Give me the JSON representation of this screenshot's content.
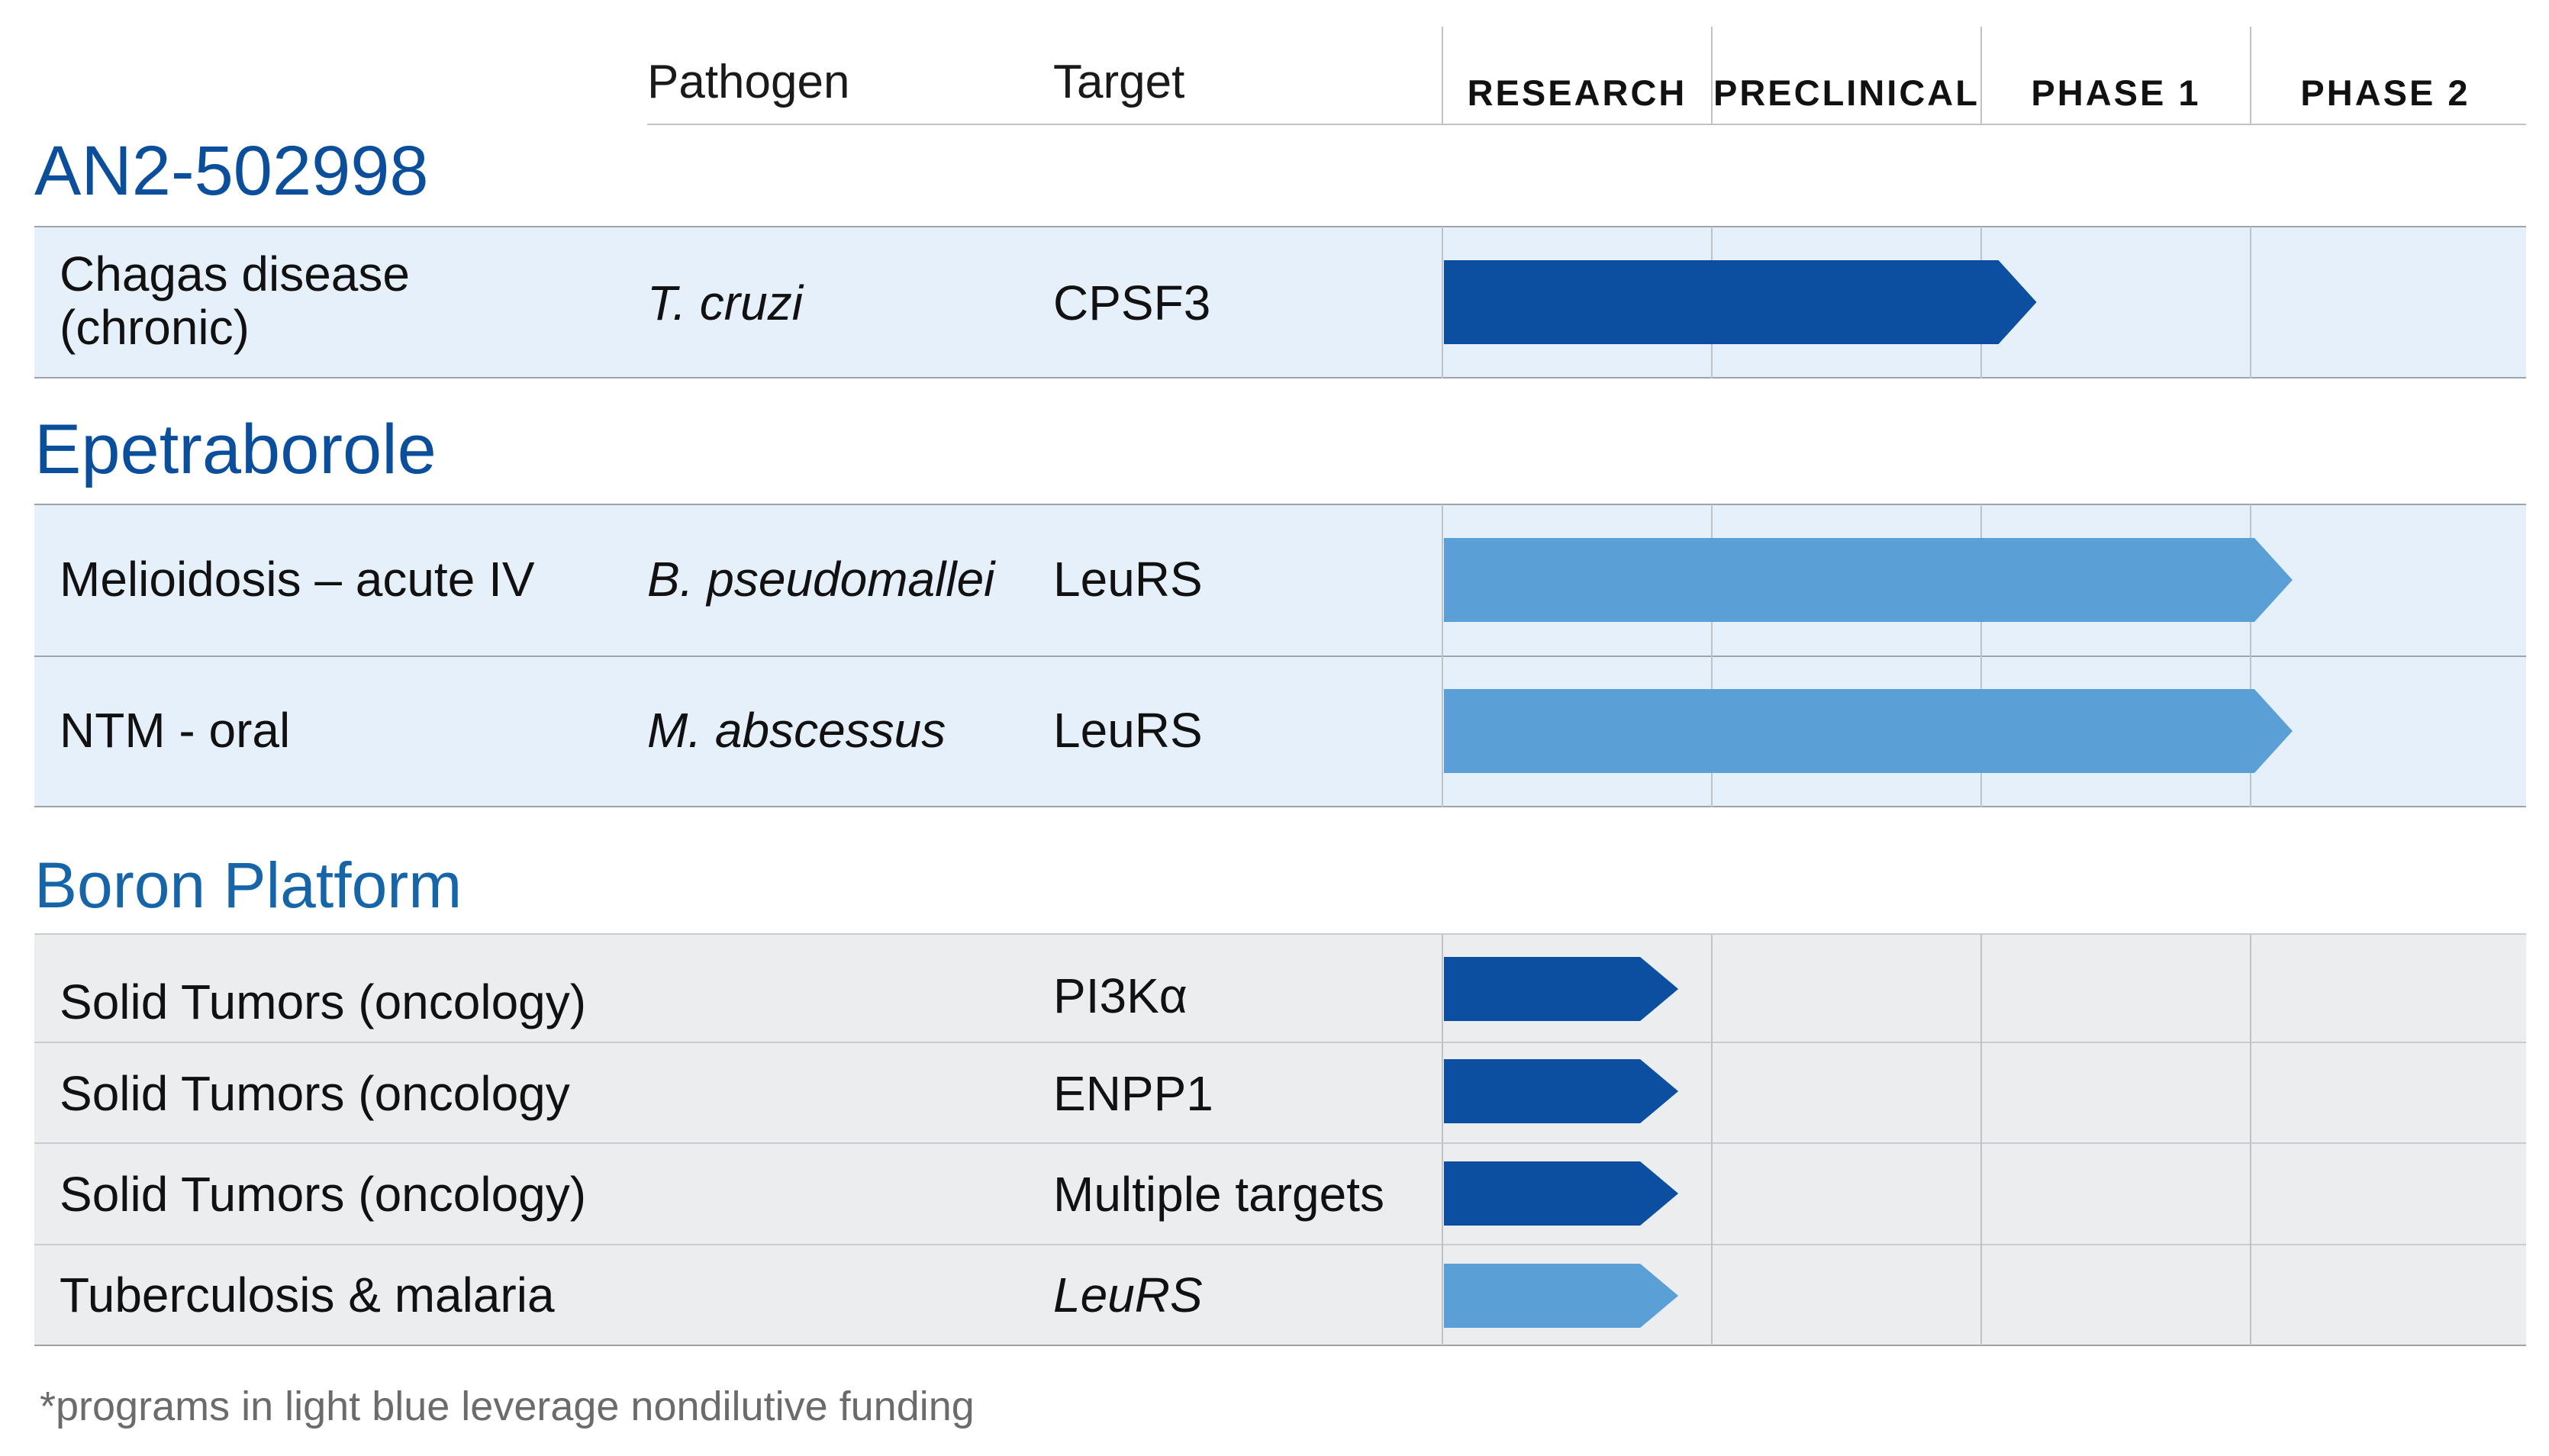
{
  "colors": {
    "title_blue": "#0b4f9c",
    "platform_title_blue": "#1565a8",
    "dark_bar": "#0c4fa0",
    "light_bar": "#5b9fd7",
    "blue_band": "#e6f0fb",
    "grey_band": "#ecedef"
  },
  "header": {
    "pathogen": "Pathogen",
    "target": "Target",
    "phases": [
      "RESEARCH",
      "PRECLINICAL",
      "PHASE 1",
      "PHASE 2"
    ]
  },
  "groups": [
    {
      "title": "AN2-502998",
      "rows": [
        {
          "indication": "Chagas disease\n(chronic)",
          "pathogen": "T. cruzi",
          "target": "CPSF3",
          "progress_phases": 2.2,
          "bar_color": "dark"
        }
      ]
    },
    {
      "title": "Epetraborole",
      "rows": [
        {
          "indication": "Melioidosis – acute IV",
          "pathogen": "B. pseudomallei",
          "target": "LeuRS",
          "progress_phases": 3.15,
          "bar_color": "light"
        },
        {
          "indication": "NTM - oral",
          "pathogen": "M. abscessus",
          "target": "LeuRS",
          "progress_phases": 3.15,
          "bar_color": "light"
        }
      ]
    },
    {
      "title": "Boron Platform",
      "rows": [
        {
          "indication": "Solid Tumors (oncology)",
          "pathogen": "",
          "target": "PI3Kα",
          "progress_phases": 0.87,
          "bar_color": "dark"
        },
        {
          "indication": "Solid Tumors (oncology",
          "pathogen": "",
          "target": "ENPP1",
          "progress_phases": 0.87,
          "bar_color": "dark"
        },
        {
          "indication": "Solid Tumors (oncology)",
          "pathogen": "",
          "target": "Multiple targets",
          "progress_phases": 0.87,
          "bar_color": "dark"
        },
        {
          "indication": "Tuberculosis & malaria",
          "pathogen": "",
          "target": "LeuRS",
          "target_italic": true,
          "progress_phases": 0.87,
          "bar_color": "light"
        }
      ]
    }
  ],
  "footnote": "*programs in light blue leverage nondilutive funding"
}
